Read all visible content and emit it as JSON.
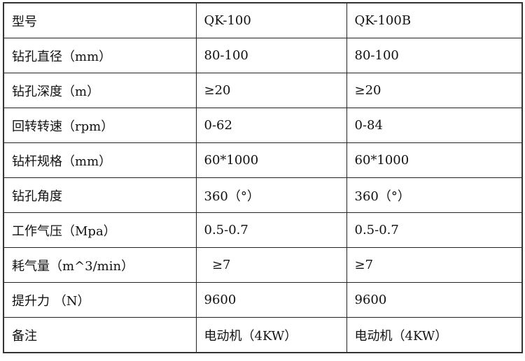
{
  "rows": [
    [
      "型号",
      "QK-100",
      "QK-100B"
    ],
    [
      "钻孔直径（mm）",
      "80-100",
      "80-100"
    ],
    [
      "钻孔深度（m）",
      "≥20",
      "≥20"
    ],
    [
      "回转转速（rpm）",
      "0-62",
      "0-84"
    ],
    [
      "钻杆规格（mm）",
      "60*1000",
      "60*1000"
    ],
    [
      "钻孔角度",
      "360（°）",
      "360（°）"
    ],
    [
      "工作气压（Mpa）",
      "0.5-0.7",
      "0.5-0.7"
    ],
    [
      "耗气量（m^3/min）",
      "  ≥7",
      "≥7"
    ],
    [
      "提升力 （N）",
      "9600",
      "9600"
    ],
    [
      "备注",
      "电动机（4KW）",
      "电动机（4KW）"
    ]
  ]
}
